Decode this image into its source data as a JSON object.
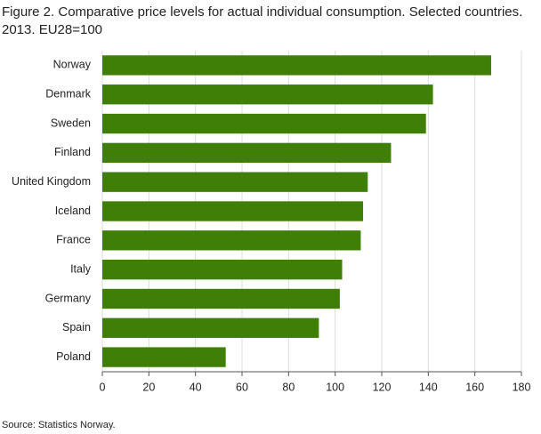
{
  "chart_data": {
    "type": "barh",
    "title": "Figure 2. Comparative price levels for actual individual consumption. Selected countries. 2013. EU28=100",
    "categories": [
      "Norway",
      "Denmark",
      "Sweden",
      "Finland",
      "United Kingdom",
      "Iceland",
      "France",
      "Italy",
      "Germany",
      "Spain",
      "Poland"
    ],
    "values": [
      167,
      142,
      139,
      124,
      114,
      112,
      111,
      103,
      102,
      93,
      53
    ],
    "color": "#3f7f07",
    "xlim": [
      0,
      180
    ],
    "xticks": [
      0,
      20,
      40,
      60,
      80,
      100,
      120,
      140,
      160,
      180
    ],
    "grid": true
  },
  "source": "Source: Statistics Norway."
}
